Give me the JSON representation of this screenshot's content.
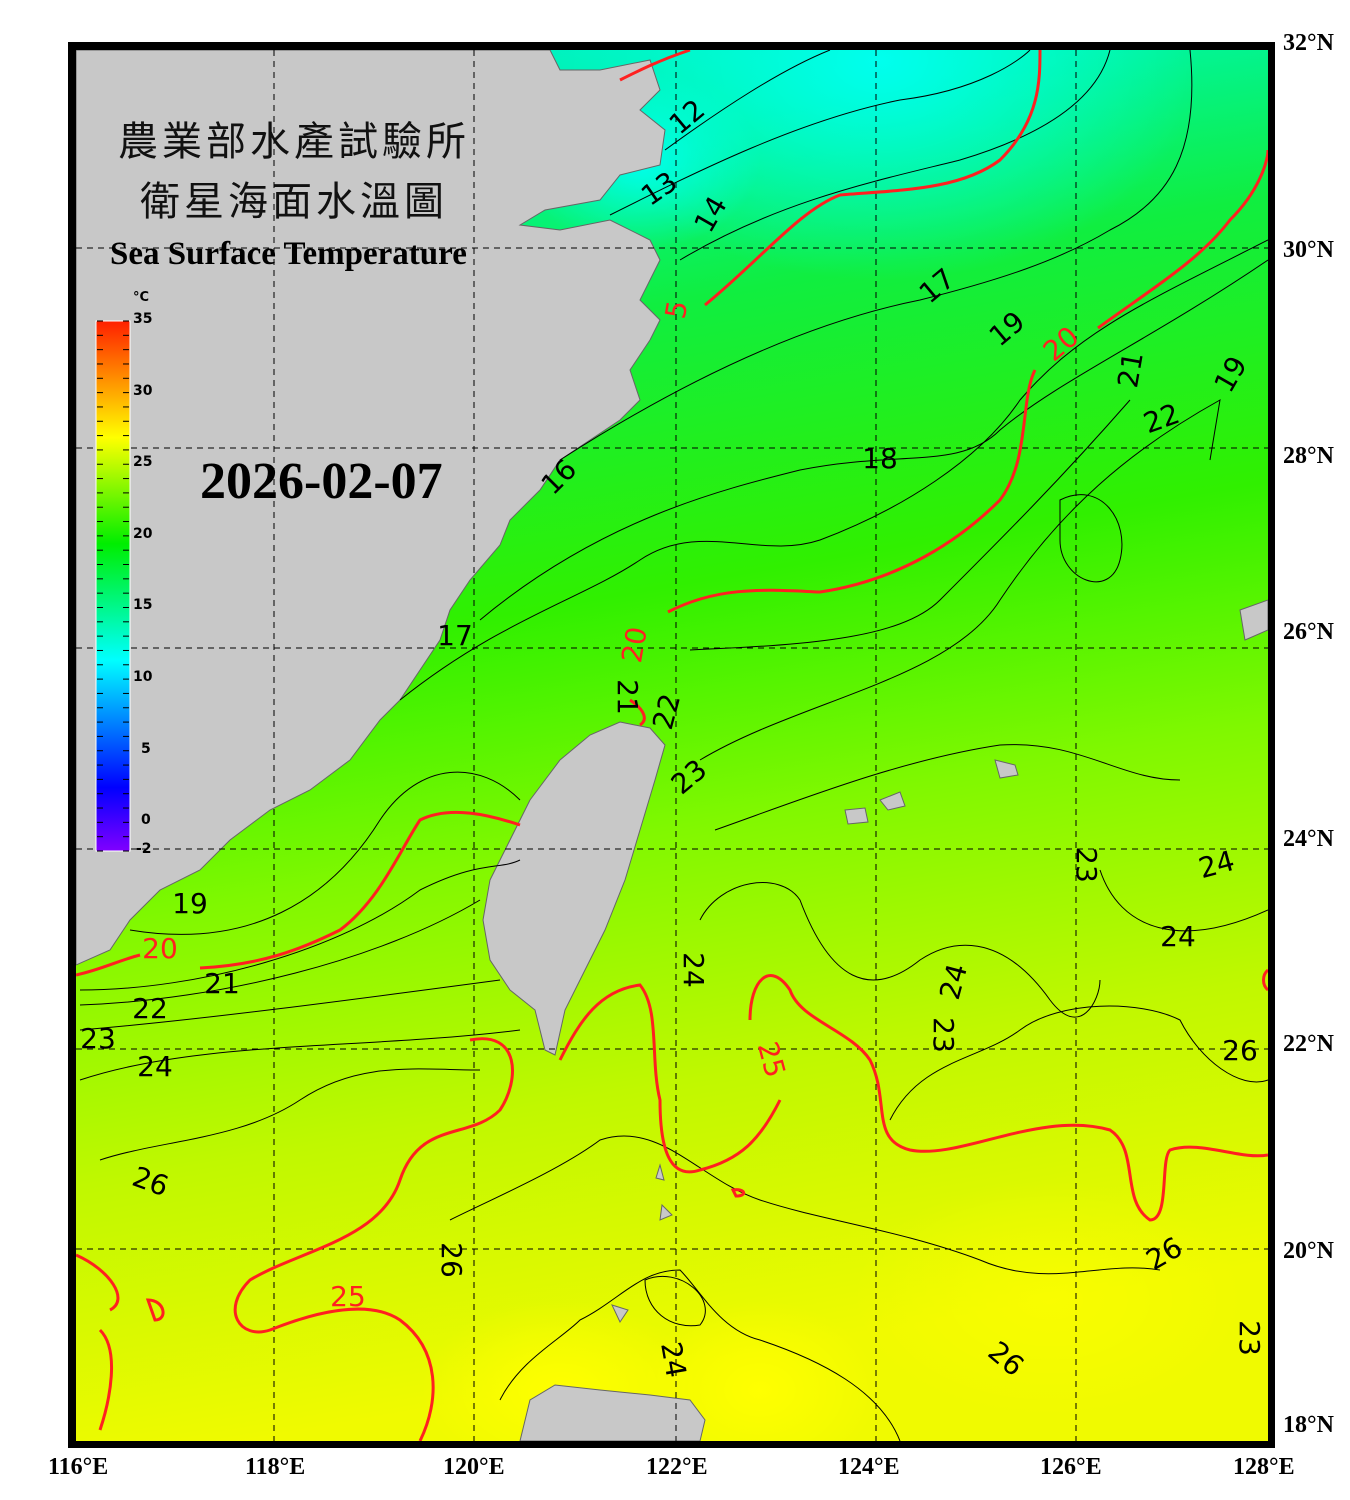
{
  "title": {
    "line1": "農業部水產試驗所",
    "line2": "衛星海面水溫圖",
    "english": "Sea Surface Temperature"
  },
  "date": "2026-02-07",
  "colorbar": {
    "unit": "°C",
    "ticks": [
      "35",
      "30",
      "25",
      "20",
      "15",
      "10",
      "5",
      "0",
      "-2"
    ],
    "range": [
      -2,
      35
    ],
    "colors": [
      "#7f00ff",
      "#0000ff",
      "#00ffff",
      "#00ff00",
      "#ffff00",
      "#ff0000"
    ]
  },
  "axes": {
    "longitude": [
      "116°E",
      "118°E",
      "120°E",
      "122°E",
      "124°E",
      "126°E",
      "128°E"
    ],
    "latitude": [
      "32°N",
      "30°N",
      "28°N",
      "26°N",
      "24°N",
      "22°N",
      "20°N",
      "18°N"
    ]
  },
  "colors": {
    "land": "#c8c8c8",
    "contour": "#000000",
    "highlight_contour": "#ff2020",
    "frame": "#000000"
  },
  "contour_labels": {
    "black": [
      "12",
      "13",
      "14",
      "17",
      "19",
      "21",
      "22",
      "16",
      "18",
      "17",
      "19",
      "21",
      "22",
      "23",
      "19",
      "21",
      "22",
      "23",
      "24",
      "24",
      "23",
      "24",
      "23",
      "24",
      "24",
      "26",
      "26",
      "26",
      "26",
      "26",
      "23",
      "24"
    ],
    "red": [
      "5",
      "20",
      "20",
      "20",
      "25",
      "25"
    ]
  }
}
